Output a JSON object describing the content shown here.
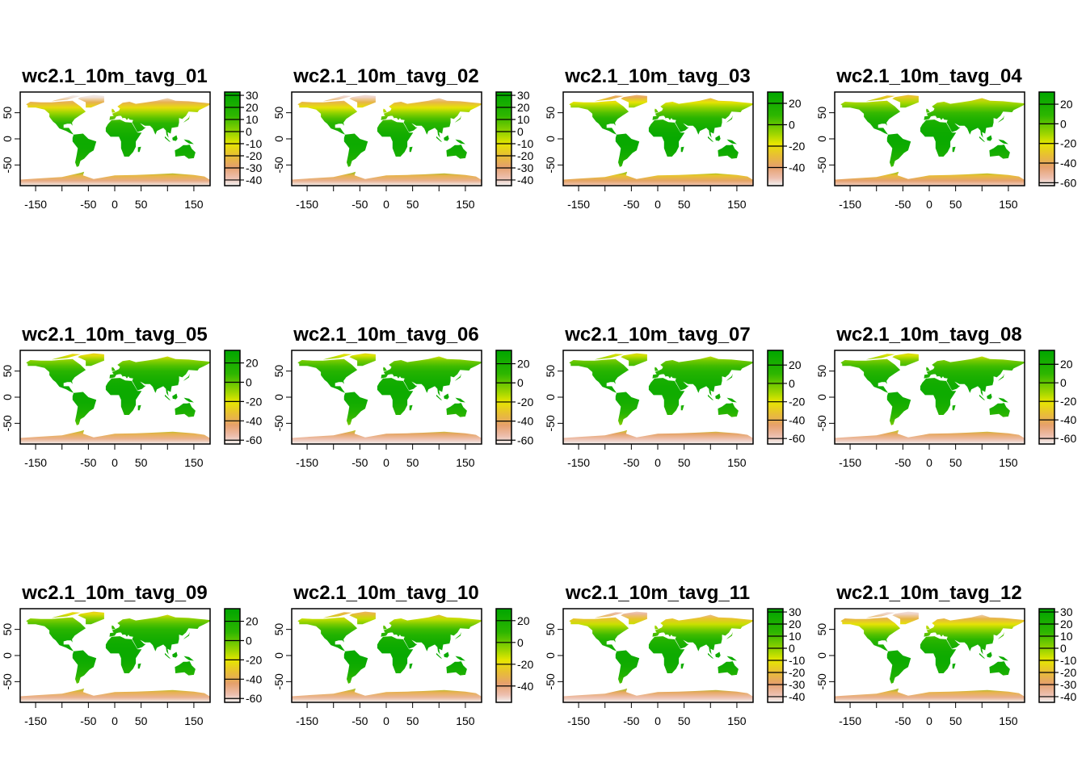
{
  "chart_data": [
    {
      "type": "heatmap",
      "title": "wc2.1_10m_tavg_01",
      "xticks": [
        -150,
        -50,
        0,
        50,
        150
      ],
      "xtick_marks": [
        -150,
        -100,
        -50,
        0,
        50,
        100,
        150
      ],
      "yticks": [
        -50,
        0,
        50
      ],
      "xlim": [
        -180,
        180
      ],
      "ylim": [
        -90,
        90
      ],
      "legend_ticks": [
        30,
        20,
        10,
        0,
        -10,
        -20,
        -30,
        -40
      ],
      "legend_range": [
        -44.7,
        32.7
      ],
      "month": 1
    },
    {
      "type": "heatmap",
      "title": "wc2.1_10m_tavg_02",
      "xticks": [
        -150,
        -50,
        0,
        50,
        150
      ],
      "xtick_marks": [
        -150,
        -100,
        -50,
        0,
        50,
        100,
        150
      ],
      "yticks": [
        -50,
        0,
        50
      ],
      "xlim": [
        -180,
        180
      ],
      "ylim": [
        -90,
        90
      ],
      "legend_ticks": [
        30,
        20,
        10,
        0,
        -10,
        -20,
        -30,
        -40
      ],
      "legend_range": [
        -44.7,
        32.7
      ],
      "month": 2
    },
    {
      "type": "heatmap",
      "title": "wc2.1_10m_tavg_03",
      "xticks": [
        -150,
        -50,
        0,
        50,
        150
      ],
      "xtick_marks": [
        -150,
        -100,
        -50,
        0,
        50,
        100,
        150
      ],
      "yticks": [
        -50,
        0,
        50
      ],
      "xlim": [
        -180,
        180
      ],
      "ylim": [
        -90,
        90
      ],
      "legend_ticks": [
        20,
        0,
        -20,
        -40
      ],
      "legend_range": [
        -57,
        30.6
      ],
      "month": 3
    },
    {
      "type": "heatmap",
      "title": "wc2.1_10m_tavg_04",
      "xticks": [
        -150,
        -50,
        0,
        50,
        150
      ],
      "xtick_marks": [
        -150,
        -100,
        -50,
        0,
        50,
        100,
        150
      ],
      "yticks": [
        -50,
        0,
        50
      ],
      "xlim": [
        -180,
        180
      ],
      "ylim": [
        -90,
        90
      ],
      "legend_ticks": [
        20,
        0,
        -20,
        -40,
        -60
      ],
      "legend_range": [
        -63,
        32.4
      ],
      "month": 4
    },
    {
      "type": "heatmap",
      "title": "wc2.1_10m_tavg_05",
      "xticks": [
        -150,
        -50,
        0,
        50,
        150
      ],
      "xtick_marks": [
        -150,
        -100,
        -50,
        0,
        50,
        100,
        150
      ],
      "yticks": [
        -50,
        0,
        50
      ],
      "xlim": [
        -180,
        180
      ],
      "ylim": [
        -90,
        90
      ],
      "legend_ticks": [
        20,
        0,
        -20,
        -40,
        -60
      ],
      "legend_range": [
        -64,
        33
      ],
      "month": 5
    },
    {
      "type": "heatmap",
      "title": "wc2.1_10m_tavg_06",
      "xticks": [
        -150,
        -50,
        0,
        50,
        150
      ],
      "xtick_marks": [
        -150,
        -100,
        -50,
        0,
        50,
        100,
        150
      ],
      "yticks": [
        -50,
        0,
        50
      ],
      "xlim": [
        -180,
        180
      ],
      "ylim": [
        -90,
        90
      ],
      "legend_ticks": [
        20,
        0,
        -20,
        -40,
        -60
      ],
      "legend_range": [
        -64,
        34
      ],
      "month": 6
    },
    {
      "type": "heatmap",
      "title": "wc2.1_10m_tavg_07",
      "xticks": [
        -150,
        -50,
        0,
        50,
        150
      ],
      "xtick_marks": [
        -150,
        -100,
        -50,
        0,
        50,
        100,
        150
      ],
      "yticks": [
        -50,
        0,
        50
      ],
      "xlim": [
        -180,
        180
      ],
      "ylim": [
        -90,
        90
      ],
      "legend_ticks": [
        20,
        0,
        -20,
        -40,
        -60
      ],
      "legend_range": [
        -66,
        36
      ],
      "month": 7
    },
    {
      "type": "heatmap",
      "title": "wc2.1_10m_tavg_08",
      "xticks": [
        -150,
        -50,
        0,
        50,
        150
      ],
      "xtick_marks": [
        -150,
        -100,
        -50,
        0,
        50,
        100,
        150
      ],
      "yticks": [
        -50,
        0,
        50
      ],
      "xlim": [
        -180,
        180
      ],
      "ylim": [
        -90,
        90
      ],
      "legend_ticks": [
        20,
        0,
        -20,
        -40,
        -60
      ],
      "legend_range": [
        -66,
        35
      ],
      "month": 8
    },
    {
      "type": "heatmap",
      "title": "wc2.1_10m_tavg_09",
      "xticks": [
        -150,
        -50,
        0,
        50,
        150
      ],
      "xtick_marks": [
        -150,
        -100,
        -50,
        0,
        50,
        100,
        150
      ],
      "yticks": [
        -50,
        0,
        50
      ],
      "xlim": [
        -180,
        180
      ],
      "ylim": [
        -90,
        90
      ],
      "legend_ticks": [
        20,
        0,
        -20,
        -40,
        -60
      ],
      "legend_range": [
        -64,
        33
      ],
      "month": 9
    },
    {
      "type": "heatmap",
      "title": "wc2.1_10m_tavg_10",
      "xticks": [
        -150,
        -50,
        0,
        50,
        150
      ],
      "xtick_marks": [
        -150,
        -100,
        -50,
        0,
        50,
        100,
        150
      ],
      "yticks": [
        -50,
        0,
        50
      ],
      "xlim": [
        -180,
        180
      ],
      "ylim": [
        -90,
        90
      ],
      "legend_ticks": [
        20,
        0,
        -20,
        -40
      ],
      "legend_range": [
        -55,
        31
      ],
      "month": 10
    },
    {
      "type": "heatmap",
      "title": "wc2.1_10m_tavg_11",
      "xticks": [
        -150,
        -50,
        0,
        50,
        150
      ],
      "xtick_marks": [
        -150,
        -100,
        -50,
        0,
        50,
        100,
        150
      ],
      "yticks": [
        -50,
        0,
        50
      ],
      "xlim": [
        -180,
        180
      ],
      "ylim": [
        -90,
        90
      ],
      "legend_ticks": [
        30,
        20,
        10,
        0,
        -10,
        -20,
        -30,
        -40
      ],
      "legend_range": [
        -44.7,
        32.7
      ],
      "month": 11
    },
    {
      "type": "heatmap",
      "title": "wc2.1_10m_tavg_12",
      "xticks": [
        -150,
        -50,
        0,
        50,
        150
      ],
      "xtick_marks": [
        -150,
        -100,
        -50,
        0,
        50,
        100,
        150
      ],
      "yticks": [
        -50,
        0,
        50
      ],
      "xlim": [
        -180,
        180
      ],
      "ylim": [
        -90,
        90
      ],
      "legend_ticks": [
        30,
        20,
        10,
        0,
        -10,
        -20,
        -30,
        -40
      ],
      "legend_range": [
        -44.7,
        32.7
      ],
      "month": 12
    }
  ]
}
